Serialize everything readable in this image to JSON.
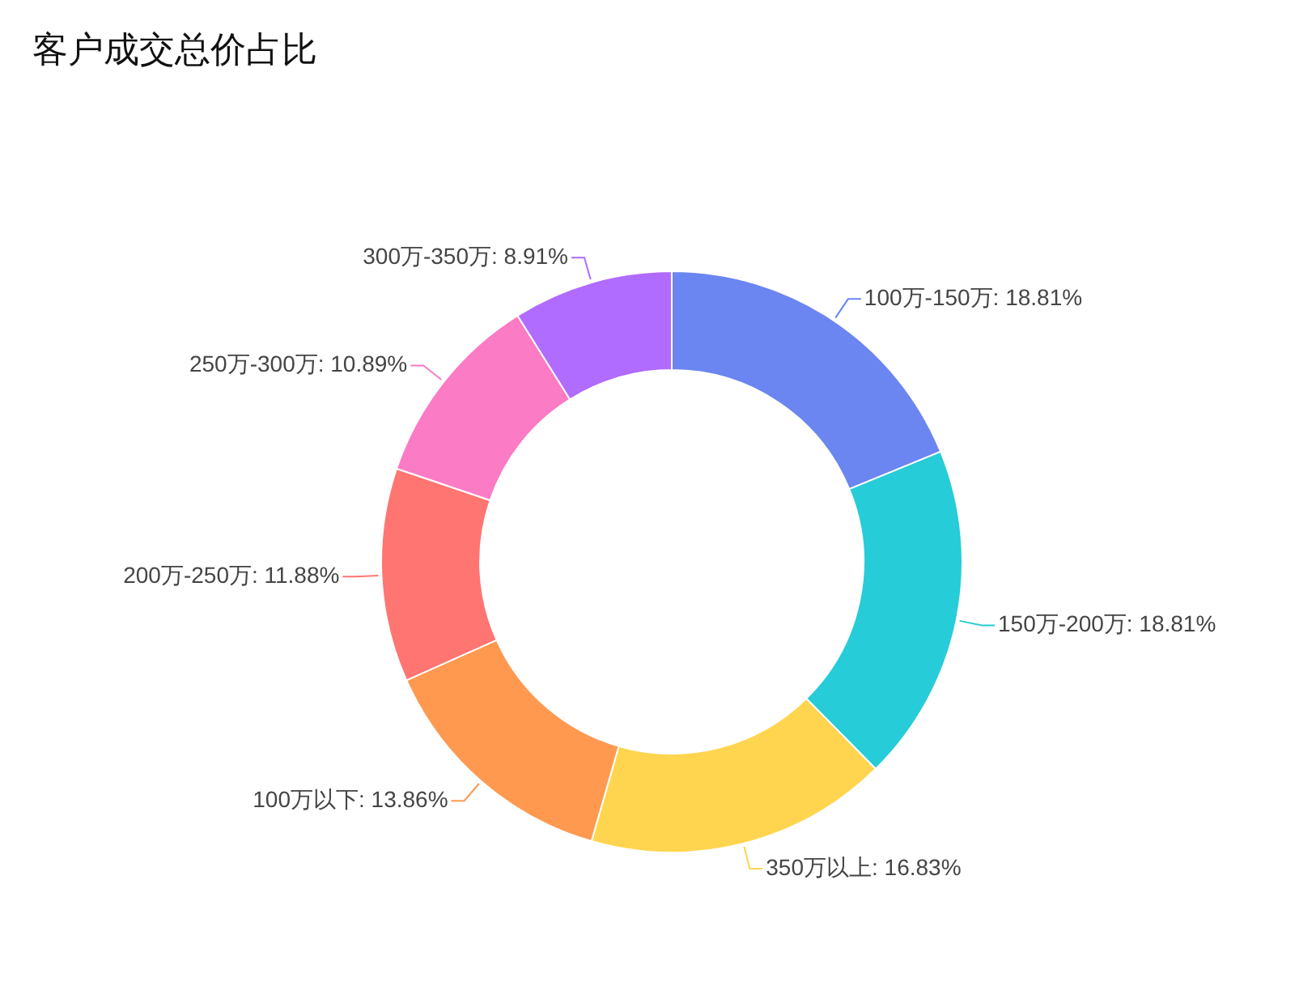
{
  "chart_data": {
    "type": "donut",
    "title": "客户成交总价占比",
    "categories": [
      "100万-150万",
      "150万-200万",
      "350万以上",
      "100万以下",
      "200万-250万",
      "250万-300万",
      "300万-350万"
    ],
    "values": [
      18.81,
      18.81,
      16.83,
      13.86,
      11.88,
      10.89,
      8.91
    ],
    "value_labels": [
      "18.81%",
      "18.81%",
      "16.83%",
      "13.86%",
      "11.88%",
      "10.89%",
      "8.91%"
    ],
    "colors": [
      "#6b86f0",
      "#26ccd8",
      "#ffd54f",
      "#ff9950",
      "#ff7571",
      "#fc7bc5",
      "#b06bff"
    ],
    "legend": false
  }
}
